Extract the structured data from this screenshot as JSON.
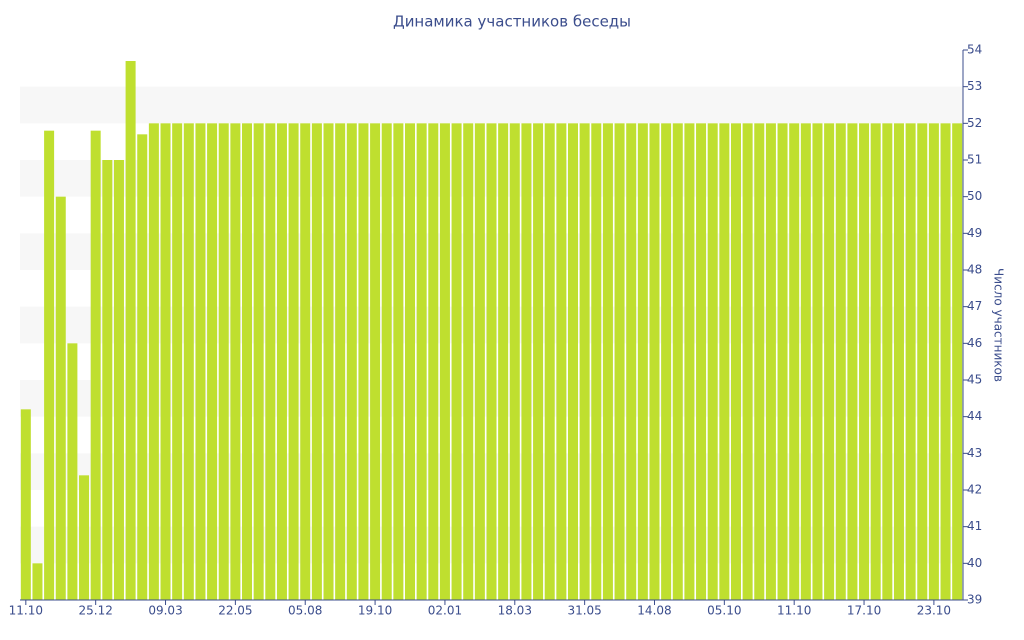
{
  "chart_data": {
    "type": "bar",
    "title": "Динамика участников беседы",
    "y_axis_label": "Число участников",
    "categories": [
      "11.10",
      null,
      null,
      null,
      null,
      null,
      "25.12",
      null,
      null,
      null,
      null,
      null,
      "09.03",
      null,
      null,
      null,
      null,
      null,
      "22.05",
      null,
      null,
      null,
      null,
      null,
      "05.08",
      null,
      null,
      null,
      null,
      null,
      "19.10",
      null,
      null,
      null,
      null,
      null,
      "02.01",
      null,
      null,
      null,
      null,
      null,
      "18.03",
      null,
      null,
      null,
      null,
      null,
      "31.05",
      null,
      null,
      null,
      null,
      null,
      "14.08",
      null,
      null,
      null,
      null,
      null,
      "05.10",
      null,
      null,
      null,
      null,
      null,
      "11.10",
      null,
      null,
      null,
      null,
      null,
      "17.10",
      null,
      null,
      null,
      null,
      null,
      "23.10",
      null,
      null
    ],
    "values": [
      44.2,
      40,
      51.8,
      50,
      46,
      42.4,
      51.8,
      51,
      51,
      53.7,
      51.7,
      52,
      52,
      52,
      52,
      52,
      52,
      52,
      52,
      52,
      52,
      52,
      52,
      52,
      52,
      52,
      52,
      52,
      52,
      52,
      52,
      52,
      52,
      52,
      52,
      52,
      52,
      52,
      52,
      52,
      52,
      52,
      52,
      52,
      52,
      52,
      52,
      52,
      52,
      52,
      52,
      52,
      52,
      52,
      52,
      52,
      52,
      52,
      52,
      52,
      52,
      52,
      52,
      52,
      52,
      52,
      52,
      52,
      52,
      52,
      52,
      52,
      52,
      52,
      52,
      52,
      52,
      52,
      52,
      52,
      52
    ],
    "color": "#bfdf2f",
    "ylim": [
      39,
      54
    ],
    "yticks": [
      39,
      40,
      41,
      42,
      43,
      44,
      45,
      46,
      47,
      48,
      49,
      50,
      51,
      52,
      53,
      54
    ],
    "grid": true
  }
}
